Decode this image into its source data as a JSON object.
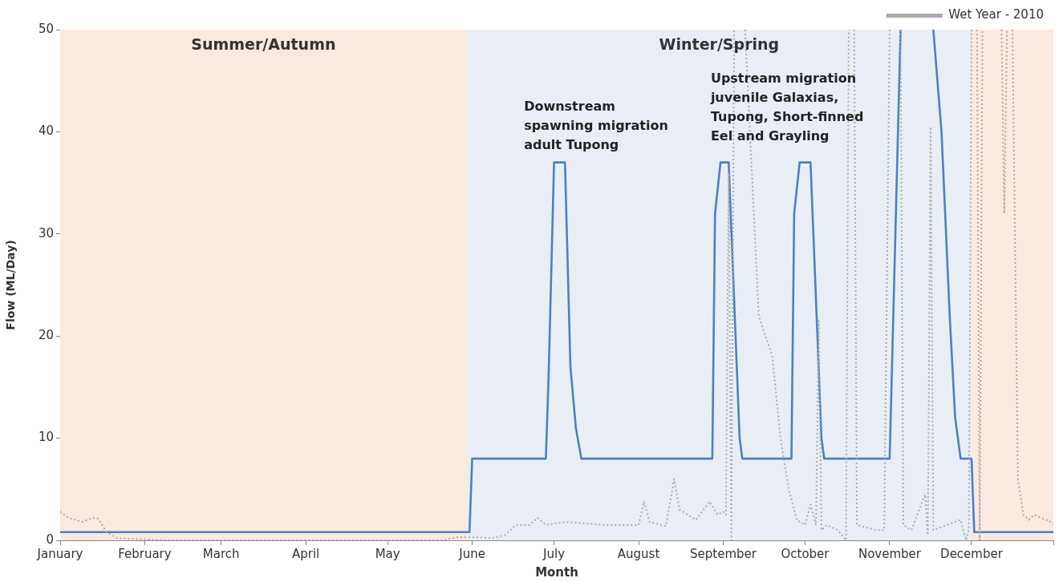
{
  "chart_data": {
    "type": "line",
    "xlabel": "Month",
    "ylabel": "Flow (ML/Day)",
    "xlim": [
      "--01-01",
      "--12-31"
    ],
    "ylim": [
      0,
      50
    ],
    "xticks": [
      {
        "value": "--01-01",
        "label": "January"
      },
      {
        "value": "--02-01",
        "label": "February"
      },
      {
        "value": "--03-01",
        "label": "March"
      },
      {
        "value": "--04-01",
        "label": "April"
      },
      {
        "value": "--05-01",
        "label": "May"
      },
      {
        "value": "--06-01",
        "label": "June"
      },
      {
        "value": "--07-01",
        "label": "July"
      },
      {
        "value": "--08-01",
        "label": "August"
      },
      {
        "value": "--09-01",
        "label": "September"
      },
      {
        "value": "--10-01",
        "label": "October"
      },
      {
        "value": "--11-01",
        "label": "November"
      },
      {
        "value": "--12-01",
        "label": "December"
      },
      {
        "value": "--12-31",
        "label": null
      }
    ],
    "yticks": [
      0,
      10,
      20,
      30,
      40,
      50
    ],
    "grid": false,
    "legend": "top right",
    "marker": "none",
    "bands": [
      {
        "axis": "x",
        "from": "--01-01",
        "to": "--05-30",
        "label": "Summer/Autumn",
        "color": "#f9e9df"
      },
      {
        "axis": "x",
        "from": "--05-30",
        "to": "--12-01",
        "label": "Winter/Spring",
        "color": "#e9eef6"
      },
      {
        "axis": "x",
        "from": "--12-01",
        "to": "--12-31",
        "color": "#f9e9df"
      }
    ],
    "annotations": [
      "Downstream\nspawning migration\nadult Tupong",
      "Upstream migration\njuvenile Galaxias,\nTupong, Short-finned\nEel and Grayling"
    ],
    "series": [
      {
        "name": "Wet Year - 2010",
        "color": "#aaaaaa",
        "line_style": "dotted",
        "x": [
          "--01-01",
          "--01-04",
          "--01-09",
          "--01-13",
          "--01-15",
          "--01-18",
          "--01-22",
          "--02-10",
          "--05-21",
          "--05-26",
          "--06-02",
          "--06-08",
          "--06-13",
          "--06-17",
          "--06-22",
          "--06-25",
          "--06-28",
          "--07-05",
          "--07-20",
          "--08-01",
          "--08-03",
          "--08-05",
          "--08-11",
          "--08-14",
          "--08-16",
          "--08-22",
          "--08-27",
          "--08-30",
          "--09-01",
          "--09-02",
          "--09-03",
          "--09-04",
          "--09-05",
          "--09-07",
          "--09-09",
          "--09-14",
          "--09-19",
          "--09-22",
          "--09-25",
          "--09-28",
          "--10-01",
          "--10-03",
          "--10-05",
          "--10-06",
          "--10-07",
          "--10-09",
          "--10-13",
          "--10-16",
          "--10-17",
          "--10-18",
          "--10-19",
          "--10-20",
          "--10-27",
          "--10-30",
          "--11-01",
          "--11-03",
          "--11-05",
          "--11-06",
          "--11-09",
          "--11-14",
          "--11-15",
          "--11-16",
          "--11-17",
          "--11-27",
          "--11-29",
          "--11-30",
          "--12-01",
          "--12-02",
          "--12-03",
          "--12-04",
          "--12-05",
          "--12-07",
          "--12-12",
          "--12-13",
          "--12-14",
          "--12-15",
          "--12-16",
          "--12-18",
          "--12-20",
          "--12-22",
          "--12-24",
          "--12-30",
          "--12-31"
        ],
        "values": [
          2.8,
          2.2,
          1.8,
          2.2,
          2.1,
          0.8,
          0.2,
          0,
          0,
          0.3,
          0.3,
          0.2,
          0.5,
          1.5,
          1.5,
          2.2,
          1.5,
          1.8,
          1.5,
          1.5,
          3.8,
          1.8,
          1.4,
          6,
          3,
          2,
          3.8,
          2.5,
          2.8,
          2.5,
          36,
          0,
          50,
          null,
          50,
          22,
          18,
          10,
          5,
          2,
          1.5,
          3.5,
          1.5,
          21.5,
          1,
          1.5,
          1,
          0,
          50,
          null,
          50,
          1.5,
          1,
          1,
          50,
          null,
          50,
          1.5,
          1,
          4.5,
          0.5,
          40.5,
          1,
          2,
          0,
          1,
          50,
          null,
          50,
          0,
          50,
          null,
          50,
          32,
          50,
          null,
          50,
          6,
          2.5,
          2,
          2.5,
          1.8,
          1.6
        ]
      },
      {
        "color": "#4f7fc0",
        "line_style": "solid",
        "x": [
          "--01-01",
          "--05-31",
          "--06-01",
          "--06-28",
          "--06-29",
          "--07-01",
          "--07-05",
          "--07-07",
          "--07-09",
          "--07-11",
          "--08-28",
          "--08-29",
          "--08-31",
          "--09-03",
          "--09-07",
          "--09-08",
          "--09-26",
          "--09-27",
          "--09-29",
          "--10-03",
          "--10-07",
          "--10-08",
          "--11-01",
          "--11-05",
          "--11-11",
          "--11-17",
          "--11-20",
          "--11-23",
          "--11-25",
          "--11-27",
          "--12-01",
          "--12-02",
          "--12-31"
        ],
        "values": [
          0.8,
          0.8,
          8,
          8,
          16,
          37,
          37,
          17,
          11,
          8,
          8,
          32,
          37,
          37,
          10,
          8,
          8,
          32,
          37,
          37,
          10,
          8,
          8,
          50,
          null,
          50,
          40,
          22,
          12,
          8,
          8,
          0.8,
          0.8
        ]
      }
    ]
  }
}
